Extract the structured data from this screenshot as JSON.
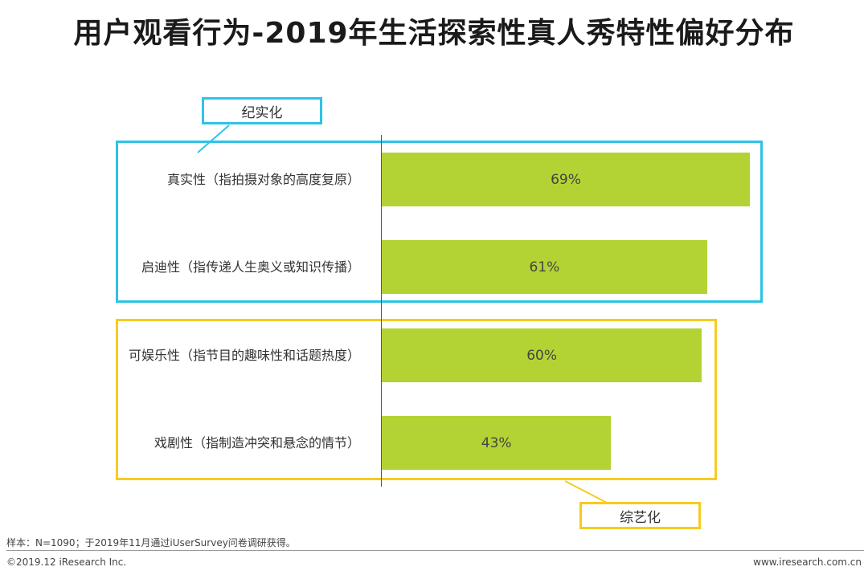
{
  "title": "用户观看行为-2019年生活探索性真人秀特性偏好分布",
  "groups": [
    {
      "label": "纪实化",
      "color": "#2ec3e6"
    },
    {
      "label": "综艺化",
      "color": "#f5cc1f"
    }
  ],
  "chart_data": {
    "type": "bar",
    "orientation": "horizontal",
    "title": "用户观看行为-2019年生活探索性真人秀特性偏好分布",
    "categories": [
      "真实性（指拍摄对象的高度复原）",
      "启迪性（指传递人生奥义或知识传播）",
      "可娱乐性（指节目的趣味性和话题热度）",
      "戏剧性（指制造冲突和悬念的情节）"
    ],
    "values": [
      69,
      61,
      60,
      43
    ],
    "value_labels": [
      "69%",
      "61%",
      "60%",
      "43%"
    ],
    "unit": "%",
    "xlim": [
      0,
      80
    ],
    "bar_color": "#b3d334",
    "group_membership": [
      "纪实化",
      "纪实化",
      "综艺化",
      "综艺化"
    ]
  },
  "footer": {
    "note": "样本：N=1090；于2019年11月通过iUserSurvey问卷调研获得。",
    "copyright": "©2019.12 iResearch Inc.",
    "website": "www.iresearch.com.cn"
  }
}
